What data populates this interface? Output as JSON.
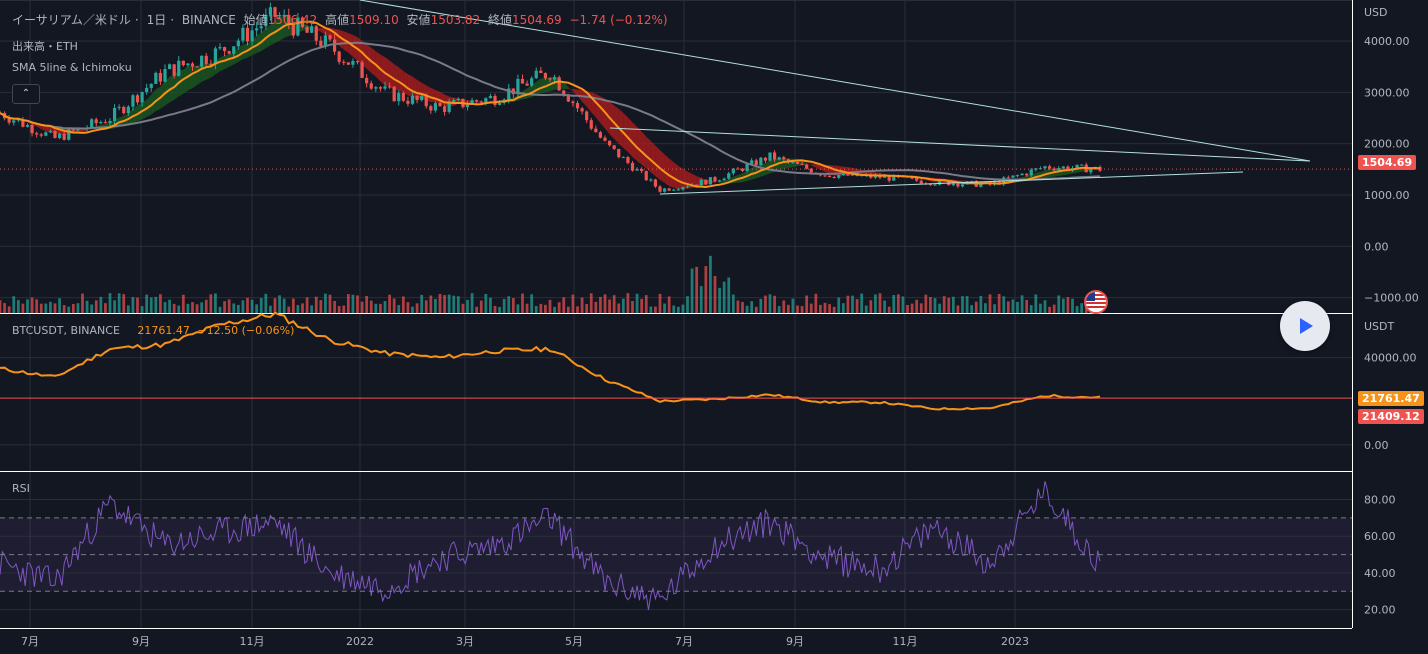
{
  "colors": {
    "background": "#131722",
    "grid": "#2a2e39",
    "up": "#26a69a",
    "down": "#ef5350",
    "btc_line": "#f7931a",
    "rsi_line": "#7e57c2",
    "rsi_band": "#7e57c2",
    "trendline": "#b2dfdb",
    "sma_slow": "#787b86",
    "sma_mid": "#f7931a",
    "ichimoku_bull": "#1b5e20",
    "ichimoku_bear": "#b71c1c"
  },
  "header": {
    "symbol": "イーサリアム／米ドル",
    "interval": "1日",
    "exchange": "BINANCE",
    "open_label": "始値",
    "open": "1506.42",
    "high_label": "高値",
    "high": "1509.10",
    "low_label": "安値",
    "low": "1503.82",
    "close_label": "終値",
    "close": "1504.69",
    "change": "−1.74 (−0.12%)",
    "volume_label": "出来高・ETH",
    "indicator_label": "SMA 5line & Ichimoku"
  },
  "main_pane": {
    "currency": "USD",
    "price_tag": "1504.69",
    "y_ticks": [
      "4000.00",
      "3000.00",
      "2000.00",
      "1000.00",
      "0.00",
      "−1000.00"
    ]
  },
  "btc_pane": {
    "label": "BTCUSDT, BINANCE",
    "value": "21761.47",
    "change": "−12.50 (−0.06%)",
    "currency": "USDT",
    "price_tag": "21761.47",
    "ref_tag": "21409.12",
    "y_ticks": [
      "40000.00",
      "0.00"
    ]
  },
  "rsi_pane": {
    "label": "RSI",
    "y_ticks": [
      "80.00",
      "60.00",
      "40.00",
      "20.00"
    ]
  },
  "x_axis": {
    "ticks": [
      "7月",
      "9月",
      "11月",
      "2022",
      "3月",
      "5月",
      "7月",
      "9月",
      "11月",
      "2023"
    ]
  },
  "icons": {
    "collapse": "chevron-up-icon",
    "play": "play-icon",
    "flag": "us-flag-icon"
  },
  "chart_data": [
    {
      "type": "line",
      "title": "イーサリアム／米ドル 1日 BINANCE",
      "ylabel": "USD",
      "ylim": [
        -1300,
        4800
      ],
      "x": [
        "2021-06",
        "2021-07",
        "2021-08",
        "2021-09",
        "2021-10",
        "2021-11",
        "2021-12",
        "2022-01",
        "2022-02",
        "2022-03",
        "2022-04",
        "2022-05",
        "2022-06",
        "2022-07",
        "2022-08",
        "2022-09",
        "2022-10",
        "2022-11",
        "2022-12",
        "2023-01",
        "2023-02"
      ],
      "series": [
        {
          "name": "ETH",
          "values": [
            2600,
            2100,
            2500,
            3400,
            3800,
            4500,
            3900,
            3000,
            2700,
            2900,
            3400,
            2000,
            1100,
            1300,
            1750,
            1400,
            1350,
            1250,
            1200,
            1550,
            1504.69
          ]
        }
      ],
      "grid": true
    },
    {
      "type": "line",
      "title": "BTCUSDT, BINANCE",
      "ylabel": "USDT",
      "ylim": [
        -12000,
        60000
      ],
      "x": [
        "2021-06",
        "2021-07",
        "2021-08",
        "2021-09",
        "2021-10",
        "2021-11",
        "2021-12",
        "2022-01",
        "2022-02",
        "2022-03",
        "2022-04",
        "2022-05",
        "2022-06",
        "2022-07",
        "2022-08",
        "2022-09",
        "2022-10",
        "2022-11",
        "2022-12",
        "2023-01",
        "2023-02"
      ],
      "series": [
        {
          "name": "BTCUSDT",
          "values": [
            35000,
            31000,
            44000,
            46000,
            55000,
            60000,
            48000,
            42000,
            40000,
            43000,
            44000,
            30000,
            20000,
            21000,
            23000,
            19500,
            19500,
            16500,
            16800,
            22500,
            21761.47
          ]
        }
      ],
      "reference_line": 21409.12,
      "grid": true
    },
    {
      "type": "line",
      "title": "RSI",
      "ylim": [
        10,
        95
      ],
      "bands": [
        30,
        50,
        70
      ],
      "x": [
        "2021-06",
        "2021-07",
        "2021-08",
        "2021-09",
        "2021-10",
        "2021-11",
        "2021-12",
        "2022-01",
        "2022-02",
        "2022-03",
        "2022-04",
        "2022-05",
        "2022-06",
        "2022-07",
        "2022-08",
        "2022-09",
        "2022-10",
        "2022-11",
        "2022-12",
        "2023-01",
        "2023-02"
      ],
      "series": [
        {
          "name": "RSI",
          "values": [
            45,
            35,
            78,
            55,
            62,
            68,
            40,
            32,
            48,
            55,
            70,
            35,
            25,
            55,
            68,
            48,
            42,
            65,
            45,
            85,
            44
          ]
        }
      ],
      "grid": true
    }
  ]
}
